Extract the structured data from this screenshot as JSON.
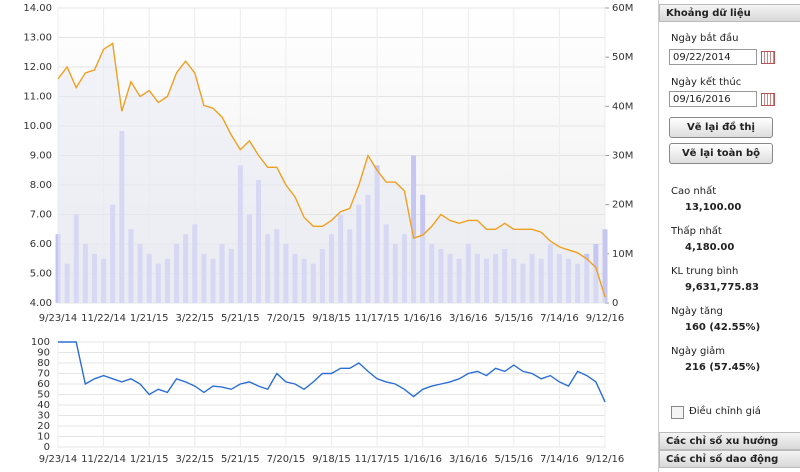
{
  "chart_data": [
    {
      "type": "line",
      "categories": [
        "9/23/14",
        null,
        null,
        null,
        null,
        "11/22/14",
        null,
        null,
        null,
        null,
        "1/21/15",
        null,
        null,
        null,
        null,
        "3/22/15",
        null,
        null,
        null,
        null,
        "5/21/15",
        null,
        null,
        null,
        null,
        "7/20/15",
        null,
        null,
        null,
        null,
        "9/18/15",
        null,
        null,
        null,
        null,
        "11/17/15",
        null,
        null,
        null,
        null,
        "1/16/16",
        null,
        null,
        null,
        null,
        "3/16/16",
        null,
        null,
        null,
        null,
        "5/15/16",
        null,
        null,
        null,
        null,
        "7/14/16",
        null,
        null,
        null,
        null,
        "9/12/16"
      ],
      "series": [
        {
          "type": "bar",
          "axis": "y2",
          "color": "#c6c6f3",
          "values": [
            14000000,
            8000000,
            18000000,
            12000000,
            10000000,
            9000000,
            20000000,
            35000000,
            15000000,
            12000000,
            10000000,
            8000000,
            9000000,
            12000000,
            14000000,
            16000000,
            10000000,
            9000000,
            12000000,
            11000000,
            28000000,
            18000000,
            25000000,
            14000000,
            15000000,
            12000000,
            10000000,
            9000000,
            8000000,
            11000000,
            14000000,
            18000000,
            15000000,
            20000000,
            22000000,
            28000000,
            16000000,
            12000000,
            14000000,
            30000000,
            22000000,
            12000000,
            11000000,
            10000000,
            9000000,
            12000000,
            10000000,
            9000000,
            10000000,
            11000000,
            9000000,
            8000000,
            10000000,
            9000000,
            12000000,
            10000000,
            9000000,
            8000000,
            10000000,
            12000000,
            15000000
          ]
        },
        {
          "type": "line",
          "color": "#f0a020",
          "values": [
            11.6,
            12.0,
            11.3,
            11.8,
            11.9,
            12.6,
            12.8,
            10.5,
            11.5,
            11.0,
            11.2,
            10.8,
            11.0,
            11.8,
            12.2,
            11.8,
            10.7,
            10.6,
            10.3,
            9.7,
            9.2,
            9.5,
            9.0,
            8.6,
            8.6,
            8.0,
            7.6,
            6.9,
            6.6,
            6.6,
            6.8,
            7.1,
            7.2,
            8.0,
            9.0,
            8.5,
            8.1,
            8.1,
            7.8,
            6.2,
            6.3,
            6.6,
            7.0,
            6.8,
            6.7,
            6.8,
            6.8,
            6.5,
            6.5,
            6.7,
            6.5,
            6.5,
            6.5,
            6.4,
            6.1,
            5.9,
            5.8,
            5.7,
            5.5,
            5.2,
            4.2
          ]
        }
      ],
      "ylim": [
        4,
        14
      ],
      "yticks": [
        {
          "value": 4,
          "label": "4.00"
        },
        {
          "value": 5,
          "label": "5.00"
        },
        {
          "value": 6,
          "label": "6.00"
        },
        {
          "value": 7,
          "label": "7.00"
        },
        {
          "value": 8,
          "label": "8.00"
        },
        {
          "value": 9,
          "label": "9.00"
        },
        {
          "value": 10,
          "label": "10.00"
        },
        {
          "value": 11,
          "label": "11.00"
        },
        {
          "value": 12,
          "label": "12.00"
        },
        {
          "value": 13,
          "label": "13.00"
        },
        {
          "value": 14,
          "label": "14.00"
        }
      ],
      "y2lim": [
        0,
        60000000
      ],
      "y2ticks": [
        0,
        {
          "value": 10000000,
          "label": "10M"
        },
        {
          "value": 20000000,
          "label": "20M"
        },
        {
          "value": 30000000,
          "label": "30M"
        },
        {
          "value": 40000000,
          "label": "40M"
        },
        {
          "value": 50000000,
          "label": "50M"
        },
        {
          "value": 60000000,
          "label": "60M"
        }
      ],
      "grid": true
    },
    {
      "type": "line",
      "categories": [
        "9/23/14",
        null,
        null,
        null,
        null,
        "11/22/14",
        null,
        null,
        null,
        null,
        "1/21/15",
        null,
        null,
        null,
        null,
        "3/22/15",
        null,
        null,
        null,
        null,
        "5/21/15",
        null,
        null,
        null,
        null,
        "7/20/15",
        null,
        null,
        null,
        null,
        "9/18/15",
        null,
        null,
        null,
        null,
        "11/17/15",
        null,
        null,
        null,
        null,
        "1/16/16",
        null,
        null,
        null,
        null,
        "3/16/16",
        null,
        null,
        null,
        null,
        "5/15/16",
        null,
        null,
        null,
        null,
        "7/14/16",
        null,
        null,
        null,
        null,
        "9/12/16"
      ],
      "series": [
        {
          "type": "line",
          "color": "#2b6fd6",
          "values": [
            100,
            100,
            100,
            60,
            65,
            68,
            65,
            62,
            65,
            60,
            50,
            55,
            52,
            65,
            62,
            58,
            52,
            58,
            57,
            55,
            60,
            62,
            58,
            55,
            70,
            62,
            60,
            55,
            62,
            70,
            70,
            75,
            75,
            80,
            72,
            65,
            62,
            60,
            55,
            48,
            55,
            58,
            60,
            62,
            65,
            70,
            72,
            68,
            75,
            72,
            78,
            72,
            70,
            65,
            68,
            62,
            58,
            72,
            68,
            62,
            43
          ]
        }
      ],
      "ylim": [
        0,
        100
      ],
      "yticks": [
        0,
        10,
        20,
        30,
        40,
        50,
        60,
        70,
        80,
        90,
        100
      ],
      "grid": true
    }
  ],
  "panel": {
    "header": "Khoảng dữ liệu",
    "start_label": "Ngày bắt đầu",
    "start_value": "09/22/2014",
    "end_label": "Ngày kết thúc",
    "end_value": "09/16/2016",
    "redraw_button": "Vẽ lại đồ thị",
    "redraw_all_button": "Vẽ lại toàn bộ",
    "stats": [
      {
        "label": "Cao nhất",
        "value": "13,100.00"
      },
      {
        "label": "Thấp nhất",
        "value": "4,180.00"
      },
      {
        "label": "KL trung bình",
        "value": "9,631,775.83"
      },
      {
        "label": "Ngày tăng",
        "value": "160 (42.55%)"
      },
      {
        "label": "Ngày giảm",
        "value": "216 (57.45%)"
      }
    ],
    "adjust_checkbox": "Điều chỉnh giá",
    "sections": [
      "Các chỉ số xu hướng",
      "Các chỉ số dao động"
    ]
  }
}
